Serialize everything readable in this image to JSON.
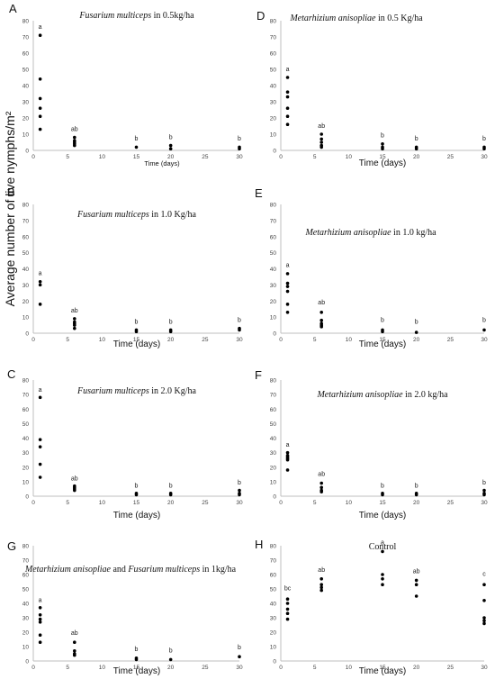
{
  "shared_ylabel": "Average number of live nymphs/m²",
  "chart_data": [
    {
      "panel": "A",
      "type": "scatter",
      "title_parts": [
        {
          "text": "Fusarium multiceps",
          "italic": true
        },
        {
          "text": " in 0.5kg/ha",
          "italic": false
        }
      ],
      "xlabel": "Time (days)",
      "xlim": [
        0,
        30
      ],
      "ylim": [
        0,
        80
      ],
      "xticks": [
        0,
        5,
        10,
        15,
        20,
        25,
        30
      ],
      "yticks": [
        0,
        10,
        20,
        30,
        40,
        50,
        60,
        70,
        80
      ],
      "series": [
        {
          "x": [
            1,
            1,
            1,
            1,
            1,
            1,
            6,
            6,
            6,
            6,
            6,
            15,
            20,
            20,
            30,
            30
          ],
          "y": [
            71,
            44,
            32,
            26,
            21,
            13,
            8,
            6,
            5,
            4,
            3,
            2,
            3,
            1,
            2,
            1
          ]
        }
      ],
      "annotations": [
        {
          "x": 1,
          "y": 75,
          "text": "a"
        },
        {
          "x": 6,
          "y": 12,
          "text": "ab"
        },
        {
          "x": 15,
          "y": 6,
          "text": "b"
        },
        {
          "x": 20,
          "y": 7,
          "text": "b"
        },
        {
          "x": 30,
          "y": 6,
          "text": "b"
        }
      ]
    },
    {
      "panel": "D",
      "type": "scatter",
      "title_parts": [
        {
          "text": "Metarhizium anisopliae",
          "italic": true
        },
        {
          "text": " in 0.5 Kg/ha",
          "italic": false
        }
      ],
      "xlabel": "Time (days)",
      "xlim": [
        0,
        30
      ],
      "ylim": [
        0,
        80
      ],
      "xticks": [
        0,
        5,
        10,
        15,
        20,
        25,
        30
      ],
      "yticks": [
        0,
        10,
        20,
        30,
        40,
        50,
        60,
        70,
        80
      ],
      "series": [
        {
          "x": [
            1,
            1,
            1,
            1,
            1,
            1,
            6,
            6,
            6,
            6,
            6,
            15,
            15,
            15,
            20,
            20,
            30,
            30
          ],
          "y": [
            45,
            36,
            33,
            26,
            21,
            16,
            10,
            7,
            5,
            3,
            2,
            4,
            2,
            1,
            2,
            1,
            2,
            1
          ]
        }
      ],
      "annotations": [
        {
          "x": 1,
          "y": 49,
          "text": "a"
        },
        {
          "x": 6,
          "y": 14,
          "text": "ab"
        },
        {
          "x": 15,
          "y": 8,
          "text": "b"
        },
        {
          "x": 20,
          "y": 6,
          "text": "b"
        },
        {
          "x": 30,
          "y": 6,
          "text": "b"
        }
      ]
    },
    {
      "panel": "B",
      "type": "scatter",
      "title_parts": [
        {
          "text": "Fusarium multiceps",
          "italic": true
        },
        {
          "text": " in 1.0 Kg/ha",
          "italic": false
        }
      ],
      "xlabel": "Time (days)",
      "xlim": [
        0,
        30
      ],
      "ylim": [
        0,
        80
      ],
      "xticks": [
        0,
        5,
        10,
        15,
        20,
        25,
        30
      ],
      "yticks": [
        0,
        10,
        20,
        30,
        40,
        50,
        60,
        70,
        80
      ],
      "series": [
        {
          "x": [
            1,
            1,
            1,
            6,
            6,
            6,
            6,
            6,
            15,
            15,
            20,
            20,
            30,
            30
          ],
          "y": [
            32,
            30,
            18,
            9,
            7,
            6,
            5,
            3,
            2,
            1,
            2,
            1,
            3,
            2
          ]
        }
      ],
      "annotations": [
        {
          "x": 1,
          "y": 36,
          "text": "a"
        },
        {
          "x": 6,
          "y": 13,
          "text": "ab"
        },
        {
          "x": 15,
          "y": 6,
          "text": "b"
        },
        {
          "x": 20,
          "y": 6,
          "text": "b"
        },
        {
          "x": 30,
          "y": 7,
          "text": "b"
        }
      ]
    },
    {
      "panel": "E",
      "type": "scatter",
      "title_parts": [
        {
          "text": "Metarhizium anisopliae",
          "italic": true
        },
        {
          "text": " in 1.0 kg/ha",
          "italic": false
        }
      ],
      "xlabel": "Time (days)",
      "xlim": [
        0,
        30
      ],
      "ylim": [
        0,
        80
      ],
      "xticks": [
        0,
        5,
        10,
        15,
        20,
        25,
        30
      ],
      "yticks": [
        0,
        10,
        20,
        30,
        40,
        50,
        60,
        70,
        80
      ],
      "series": [
        {
          "x": [
            1,
            1,
            1,
            1,
            1,
            1,
            6,
            6,
            6,
            6,
            6,
            15,
            15,
            20,
            30
          ],
          "y": [
            37,
            31,
            29,
            26,
            18,
            13,
            13,
            8,
            6,
            5,
            4,
            2,
            1,
            0.5,
            2
          ]
        }
      ],
      "annotations": [
        {
          "x": 1,
          "y": 41,
          "text": "a"
        },
        {
          "x": 6,
          "y": 18,
          "text": "ab"
        },
        {
          "x": 15,
          "y": 7,
          "text": "b"
        },
        {
          "x": 20,
          "y": 6,
          "text": "b"
        },
        {
          "x": 30,
          "y": 7,
          "text": "b"
        }
      ]
    },
    {
      "panel": "C",
      "type": "scatter",
      "title_parts": [
        {
          "text": "Fusarium multiceps",
          "italic": true
        },
        {
          "text": " in 2.0 Kg/ha",
          "italic": false
        }
      ],
      "xlabel": "Time (days)",
      "xlim": [
        0,
        30
      ],
      "ylim": [
        0,
        80
      ],
      "xticks": [
        0,
        5,
        10,
        15,
        20,
        25,
        30
      ],
      "yticks": [
        0,
        10,
        20,
        30,
        40,
        50,
        60,
        70,
        80
      ],
      "series": [
        {
          "x": [
            1,
            1,
            1,
            1,
            1,
            6,
            6,
            6,
            6,
            15,
            15,
            20,
            20,
            30,
            30,
            30
          ],
          "y": [
            68,
            39,
            34,
            22,
            13,
            7,
            6,
            5,
            4,
            2,
            1,
            2,
            1,
            4,
            2,
            1
          ]
        }
      ],
      "annotations": [
        {
          "x": 1,
          "y": 72,
          "text": "a"
        },
        {
          "x": 6,
          "y": 11,
          "text": "ab"
        },
        {
          "x": 15,
          "y": 6,
          "text": "b"
        },
        {
          "x": 20,
          "y": 6,
          "text": "b"
        },
        {
          "x": 30,
          "y": 8,
          "text": "b"
        }
      ]
    },
    {
      "panel": "F",
      "type": "scatter",
      "title_parts": [
        {
          "text": "Metarhizium anisopliae",
          "italic": true
        },
        {
          "text": " in 2.0 kg/ha",
          "italic": false
        }
      ],
      "xlabel": "Time (days)",
      "xlim": [
        0,
        30
      ],
      "ylim": [
        0,
        80
      ],
      "xticks": [
        0,
        5,
        10,
        15,
        20,
        25,
        30
      ],
      "yticks": [
        0,
        10,
        20,
        30,
        40,
        50,
        60,
        70,
        80
      ],
      "series": [
        {
          "x": [
            1,
            1,
            1,
            1,
            1,
            1,
            6,
            6,
            6,
            6,
            15,
            15,
            20,
            20,
            30,
            30,
            30
          ],
          "y": [
            30,
            28,
            27,
            26,
            25,
            18,
            9,
            6,
            4,
            3,
            2,
            1,
            2,
            1,
            4,
            2,
            1
          ]
        }
      ],
      "annotations": [
        {
          "x": 1,
          "y": 34,
          "text": "a"
        },
        {
          "x": 6,
          "y": 14,
          "text": "ab"
        },
        {
          "x": 15,
          "y": 6,
          "text": "b"
        },
        {
          "x": 20,
          "y": 6,
          "text": "b"
        },
        {
          "x": 30,
          "y": 8,
          "text": "b"
        }
      ]
    },
    {
      "panel": "G",
      "type": "scatter",
      "title_parts": [
        {
          "text": "Metarhizium anisopliae",
          "italic": true
        },
        {
          "text": " and ",
          "italic": false
        },
        {
          "text": "Fusarium multiceps",
          "italic": true
        },
        {
          "text": " in 1kg/ha",
          "italic": false
        }
      ],
      "xlabel": "Time (days)",
      "xlim": [
        0,
        30
      ],
      "ylim": [
        0,
        80
      ],
      "xticks": [
        0,
        5,
        10,
        15,
        20,
        25,
        30
      ],
      "yticks": [
        0,
        10,
        20,
        30,
        40,
        50,
        60,
        70,
        80
      ],
      "series": [
        {
          "x": [
            1,
            1,
            1,
            1,
            1,
            1,
            6,
            6,
            6,
            6,
            15,
            15,
            20,
            30
          ],
          "y": [
            37,
            32,
            29,
            27,
            18,
            13,
            13,
            7,
            5,
            4,
            2,
            1,
            1,
            3
          ]
        }
      ],
      "annotations": [
        {
          "x": 1,
          "y": 41,
          "text": "a"
        },
        {
          "x": 6,
          "y": 18,
          "text": "ab"
        },
        {
          "x": 15,
          "y": 7,
          "text": "b"
        },
        {
          "x": 20,
          "y": 6,
          "text": "b"
        },
        {
          "x": 30,
          "y": 8,
          "text": "b"
        }
      ]
    },
    {
      "panel": "H",
      "type": "scatter",
      "title_parts": [
        {
          "text": "Control",
          "italic": false
        }
      ],
      "xlabel": "Time (days)",
      "xlim": [
        0,
        30
      ],
      "ylim": [
        0,
        80
      ],
      "xticks": [
        0,
        5,
        10,
        15,
        20,
        25,
        30
      ],
      "yticks": [
        0,
        10,
        20,
        30,
        40,
        50,
        60,
        70,
        80
      ],
      "series": [
        {
          "x": [
            1,
            1,
            1,
            1,
            1,
            6,
            6,
            6,
            6,
            15,
            15,
            15,
            15,
            20,
            20,
            20,
            30,
            30,
            30,
            30,
            30
          ],
          "y": [
            43,
            40,
            36,
            33,
            29,
            57,
            53,
            51,
            49,
            76,
            60,
            57,
            53,
            56,
            53,
            45,
            53,
            42,
            30,
            28,
            26
          ]
        }
      ],
      "annotations": [
        {
          "x": 1,
          "y": 49,
          "text": "bc"
        },
        {
          "x": 6,
          "y": 62,
          "text": "ab"
        },
        {
          "x": 15,
          "y": 81,
          "text": "a"
        },
        {
          "x": 20,
          "y": 61,
          "text": "ab"
        },
        {
          "x": 30,
          "y": 59,
          "text": "c"
        }
      ]
    }
  ]
}
